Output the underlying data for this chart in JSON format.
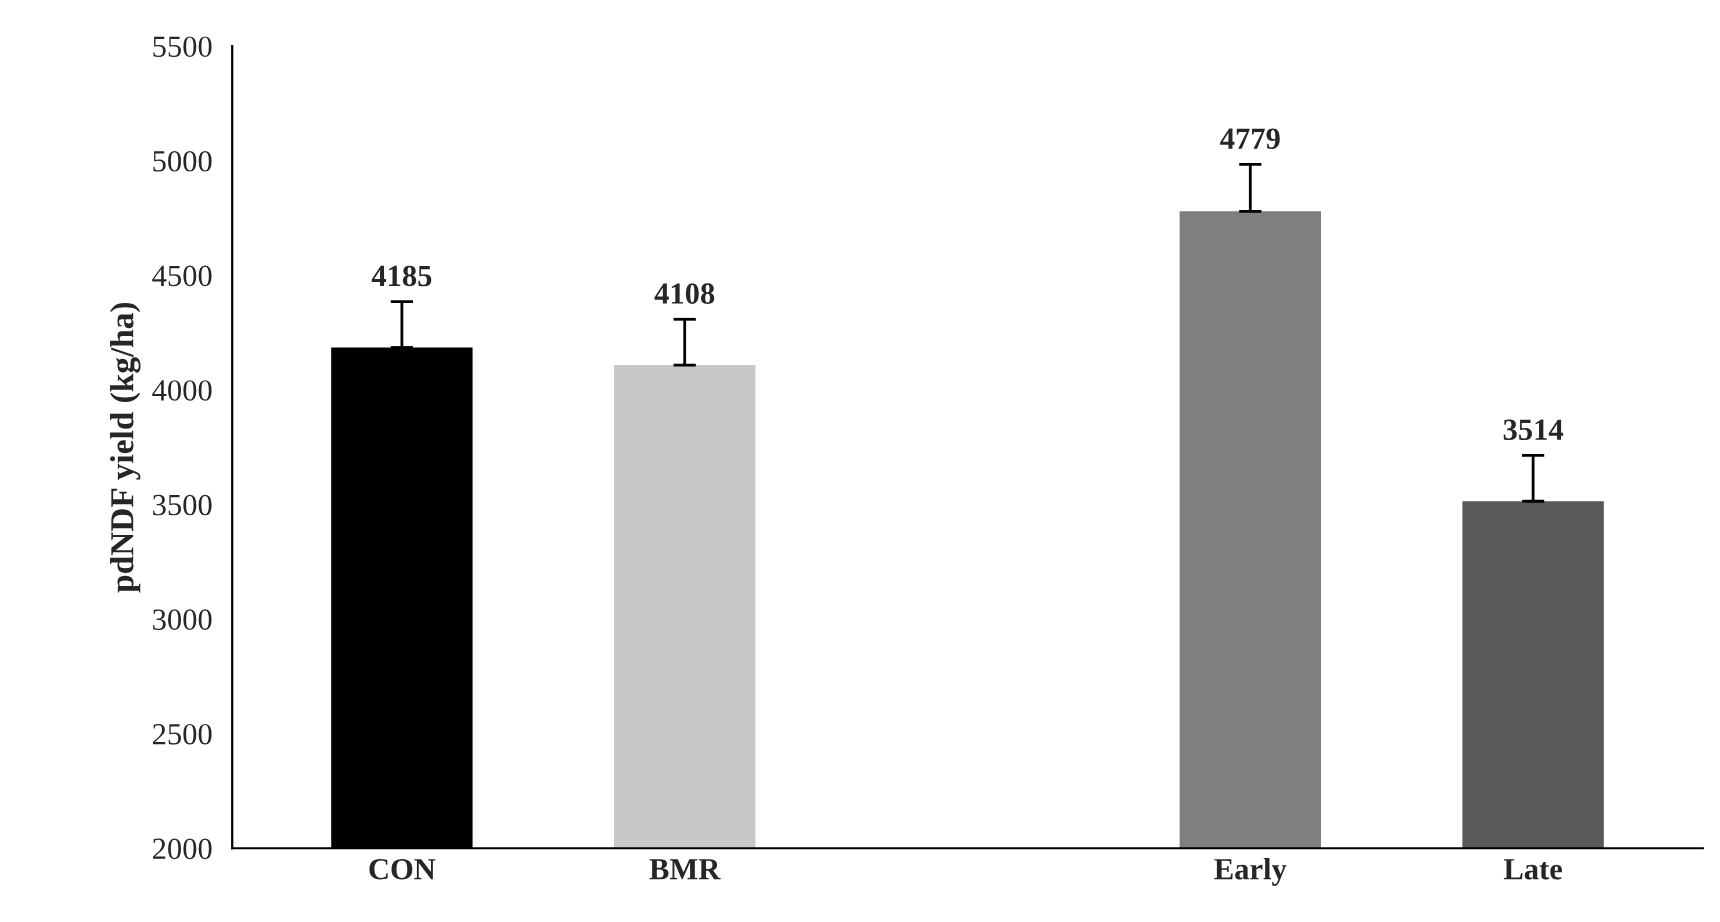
{
  "chart_data": {
    "type": "bar",
    "ylabel": "pdNDF yield (kg/ha)",
    "categories": [
      "CON",
      "BMR",
      null,
      "Early",
      "Late"
    ],
    "values": [
      4185,
      4108,
      null,
      4779,
      3514
    ],
    "colors": [
      "#000000",
      "#c8c8c8",
      "#ffffff",
      "#7f7f7f",
      "#595959"
    ],
    "errors": [
      [
        4185,
        4385
      ],
      [
        4108,
        4308
      ],
      null,
      [
        4779,
        4984
      ],
      [
        3514,
        3714
      ]
    ],
    "data_labels": true,
    "ylim": [
      2000,
      5500
    ],
    "yticks": [
      2000,
      2500,
      3000,
      3500,
      4000,
      4500,
      5000,
      5500
    ],
    "grid": false,
    "legend": false
  }
}
